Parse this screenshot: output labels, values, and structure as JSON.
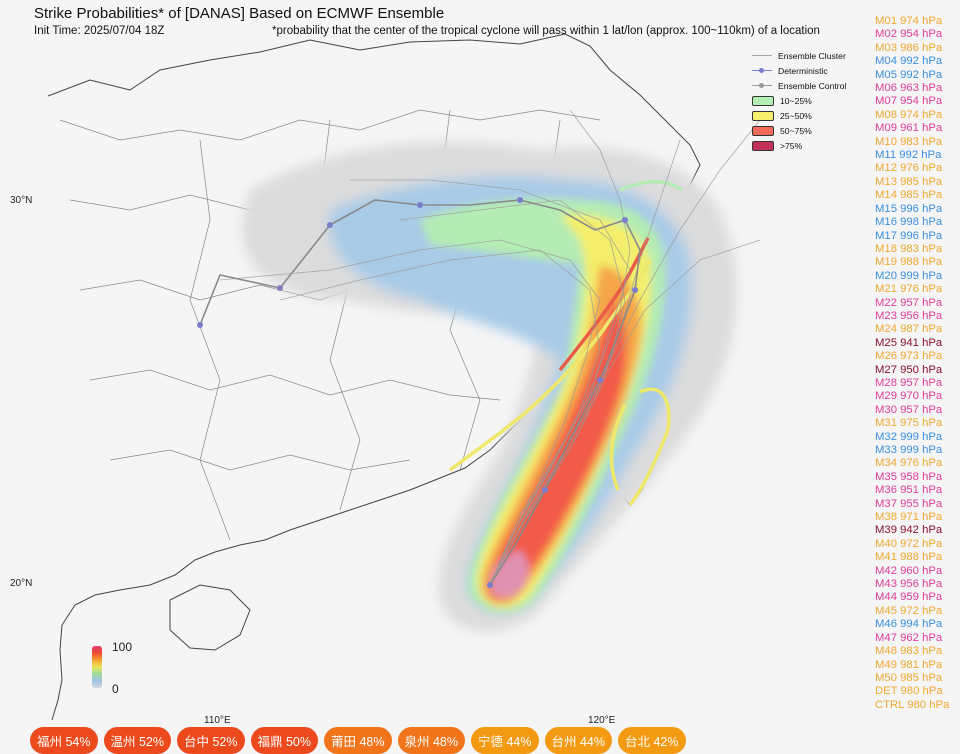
{
  "header": {
    "title": "Strike Probabilities* of [DANAS] Based on ECMWF Ensemble",
    "init_time": "Init Time: 2025/07/04 18Z",
    "footnote": "*probability that the center of the tropical cyclone will pass within 1 lat/lon (approx. 100~110km) of a location"
  },
  "axes": {
    "lat_labels": [
      "30°N",
      "20°N"
    ],
    "lon_labels": [
      "110°E",
      "120°E"
    ]
  },
  "legend": {
    "lines": [
      "Ensemble Cluster",
      "Deterministic",
      "Ensemble Control"
    ],
    "bins": [
      {
        "label": "10~25%",
        "color": "#b4f0b4"
      },
      {
        "label": "25~50%",
        "color": "#f5f070"
      },
      {
        "label": "50~75%",
        "color": "#f26a5a"
      },
      {
        "label": ">75%",
        "color": "#c2305a"
      }
    ],
    "colorbar_top": "100",
    "colorbar_bottom": "0"
  },
  "members": [
    {
      "label": "M01 974 hPa",
      "color": "#f0a830"
    },
    {
      "label": "M02 954 hPa",
      "color": "#e03c9a"
    },
    {
      "label": "M03 986 hPa",
      "color": "#f0a830"
    },
    {
      "label": "M04 992 hPa",
      "color": "#3a8fe0"
    },
    {
      "label": "M05 992 hPa",
      "color": "#3a8fe0"
    },
    {
      "label": "M06 963 hPa",
      "color": "#e03c9a"
    },
    {
      "label": "M07 954 hPa",
      "color": "#e03c9a"
    },
    {
      "label": "M08 974 hPa",
      "color": "#f0a830"
    },
    {
      "label": "M09 961 hPa",
      "color": "#e03c9a"
    },
    {
      "label": "M10 983 hPa",
      "color": "#f0a830"
    },
    {
      "label": "M11 992 hPa",
      "color": "#3a8fe0"
    },
    {
      "label": "M12 976 hPa",
      "color": "#f0a830"
    },
    {
      "label": "M13 985 hPa",
      "color": "#f0a830"
    },
    {
      "label": "M14 985 hPa",
      "color": "#f0a830"
    },
    {
      "label": "M15 996 hPa",
      "color": "#3a8fe0"
    },
    {
      "label": "M16 998 hPa",
      "color": "#3a8fe0"
    },
    {
      "label": "M17 996 hPa",
      "color": "#3a8fe0"
    },
    {
      "label": "M18 983 hPa",
      "color": "#f0a830"
    },
    {
      "label": "M19 988 hPa",
      "color": "#f0a830"
    },
    {
      "label": "M20 999 hPa",
      "color": "#3a8fe0"
    },
    {
      "label": "M21 976 hPa",
      "color": "#f0a830"
    },
    {
      "label": "M22 957 hPa",
      "color": "#e03c9a"
    },
    {
      "label": "M23 956 hPa",
      "color": "#e03c9a"
    },
    {
      "label": "M24 987 hPa",
      "color": "#f0a830"
    },
    {
      "label": "M25 941 hPa",
      "color": "#8a1030"
    },
    {
      "label": "M26 973 hPa",
      "color": "#f0a830"
    },
    {
      "label": "M27 950 hPa",
      "color": "#8a1030"
    },
    {
      "label": "M28 957 hPa",
      "color": "#e03c9a"
    },
    {
      "label": "M29 970 hPa",
      "color": "#e03c9a"
    },
    {
      "label": "M30 957 hPa",
      "color": "#e03c9a"
    },
    {
      "label": "M31 975 hPa",
      "color": "#f0a830"
    },
    {
      "label": "M32 999 hPa",
      "color": "#3a8fe0"
    },
    {
      "label": "M33 999 hPa",
      "color": "#3a8fe0"
    },
    {
      "label": "M34 976 hPa",
      "color": "#f0a830"
    },
    {
      "label": "M35 958 hPa",
      "color": "#e03c9a"
    },
    {
      "label": "M36 951 hPa",
      "color": "#e03c9a"
    },
    {
      "label": "M37 955 hPa",
      "color": "#e03c9a"
    },
    {
      "label": "M38 971 hPa",
      "color": "#f0a830"
    },
    {
      "label": "M39 942 hPa",
      "color": "#8a1030"
    },
    {
      "label": "M40 972 hPa",
      "color": "#f0a830"
    },
    {
      "label": "M41 988 hPa",
      "color": "#f0a830"
    },
    {
      "label": "M42 960 hPa",
      "color": "#e03c9a"
    },
    {
      "label": "M43 956 hPa",
      "color": "#e03c9a"
    },
    {
      "label": "M44 959 hPa",
      "color": "#e03c9a"
    },
    {
      "label": "M45 972 hPa",
      "color": "#f0a830"
    },
    {
      "label": "M46 994 hPa",
      "color": "#3a8fe0"
    },
    {
      "label": "M47 962 hPa",
      "color": "#e03c9a"
    },
    {
      "label": "M48 983 hPa",
      "color": "#f0a830"
    },
    {
      "label": "M49 981 hPa",
      "color": "#f0a830"
    },
    {
      "label": "M50 985 hPa",
      "color": "#f0a830"
    },
    {
      "label": "DET 980 hPa",
      "color": "#f0a830"
    },
    {
      "label": "CTRL 980 hPa",
      "color": "#f0a830"
    }
  ],
  "city_probabilities": [
    {
      "label": "福州 54%",
      "color": "#ec4a1c"
    },
    {
      "label": "温州 52%",
      "color": "#ec4a1c"
    },
    {
      "label": "台中 52%",
      "color": "#ec4a1c"
    },
    {
      "label": "福鼎 50%",
      "color": "#ec4a1c"
    },
    {
      "label": "莆田 48%",
      "color": "#f2741a"
    },
    {
      "label": "泉州 48%",
      "color": "#f2741a"
    },
    {
      "label": "宁德 44%",
      "color": "#f39a12"
    },
    {
      "label": "台州 44%",
      "color": "#f39a12"
    },
    {
      "label": "台北 42%",
      "color": "#f39a12"
    }
  ],
  "chart_data": {
    "type": "heatmap",
    "title": "Strike Probabilities* of [DANAS] Based on ECMWF Ensemble",
    "x_ticks": [
      "110°E",
      "120°E"
    ],
    "y_ticks": [
      "20°N",
      "30°N"
    ],
    "colorbar_range": [
      0,
      100
    ],
    "probability_bins": [
      "10~25%",
      "25~50%",
      "50~75%",
      ">75%"
    ],
    "legend_placement": "top-right",
    "series": [
      {
        "name": "Ensemble Cluster",
        "type": "tracks"
      },
      {
        "name": "Deterministic",
        "type": "track"
      },
      {
        "name": "Ensemble Control",
        "type": "track"
      }
    ],
    "city_strike_probabilities": [
      {
        "city": "福州",
        "value": 54
      },
      {
        "city": "温州",
        "value": 52
      },
      {
        "city": "台中",
        "value": 52
      },
      {
        "city": "福鼎",
        "value": 50
      },
      {
        "city": "莆田",
        "value": 48
      },
      {
        "city": "泉州",
        "value": 48
      },
      {
        "city": "宁德",
        "value": 44
      },
      {
        "city": "台州",
        "value": 44
      },
      {
        "city": "台北",
        "value": 42
      }
    ]
  }
}
